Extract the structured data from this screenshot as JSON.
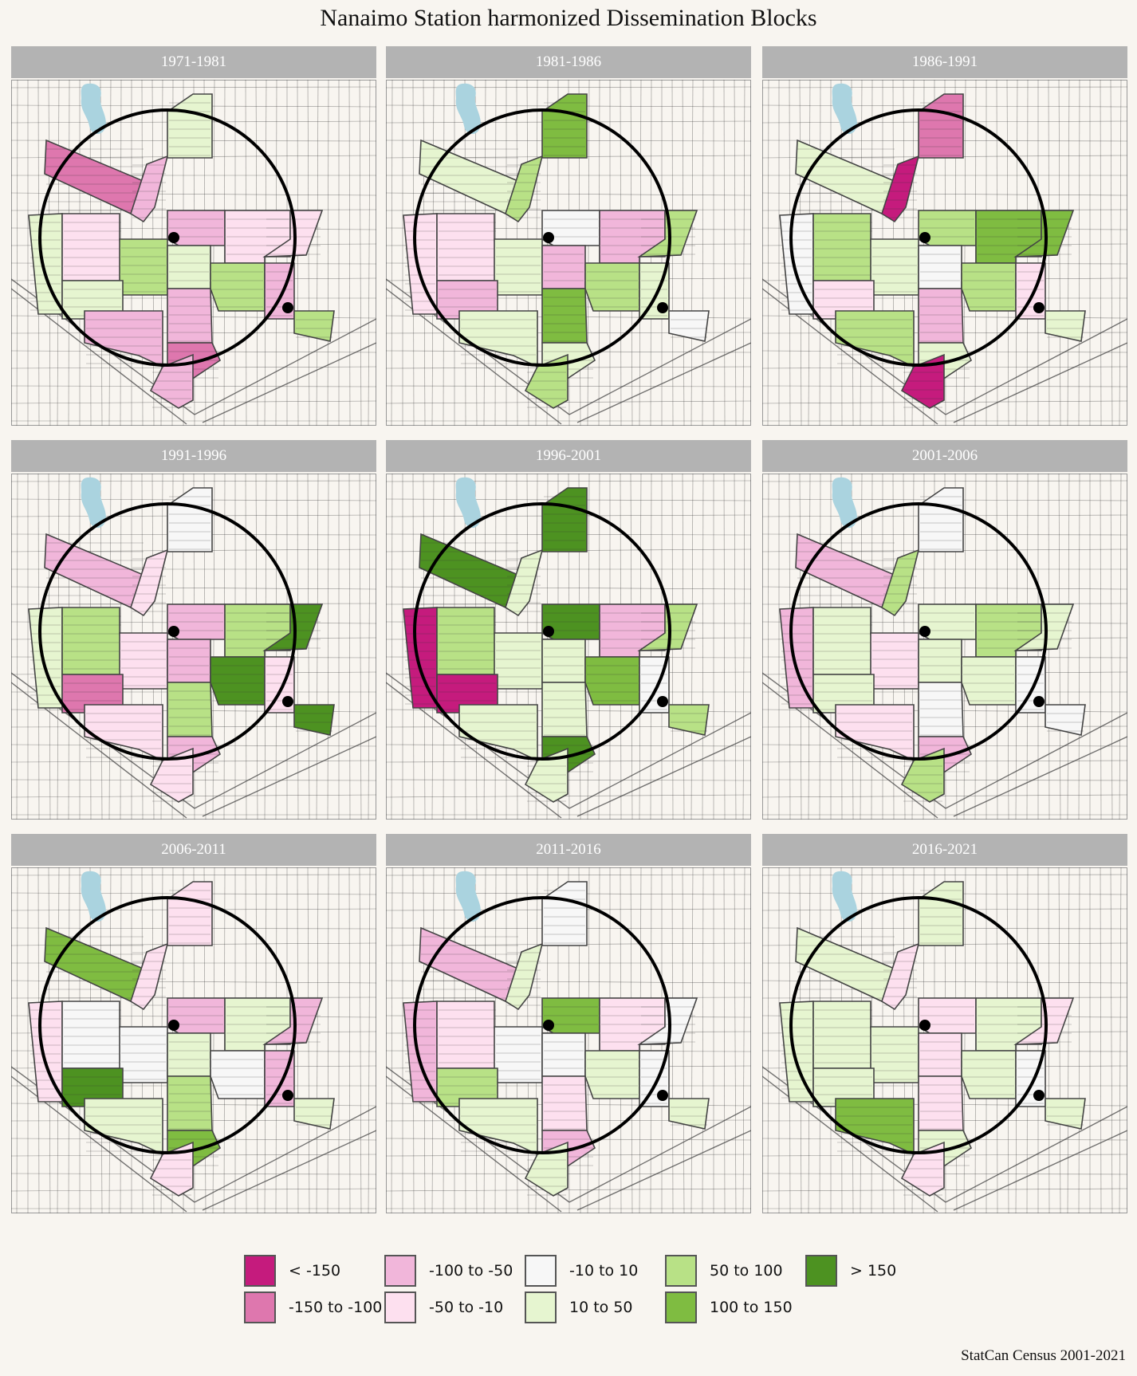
{
  "title": "Nanaimo Station harmonized Dissemination Blocks",
  "caption": "StatCan Census 2001-2021",
  "colors": {
    "background": "#f8f5f0",
    "strip": "#b3b3b3",
    "water": "#aad3df",
    "streets": "#3c3c3c",
    "circle": "#000000"
  },
  "legend": [
    {
      "label": "< -150",
      "color": "#c51b7d"
    },
    {
      "label": "-150 to -100",
      "color": "#de77ae"
    },
    {
      "label": "-100 to -50",
      "color": "#f1b6da"
    },
    {
      "label": "-50 to -10",
      "color": "#fde0ef"
    },
    {
      "label": "-10 to 10",
      "color": "#f7f7f7"
    },
    {
      "label": "10 to 50",
      "color": "#e6f5d0"
    },
    {
      "label": "50 to 100",
      "color": "#b8e186"
    },
    {
      "label": "100 to 150",
      "color": "#7fbc41"
    },
    {
      "label": "> 150",
      "color": "#4d9221"
    }
  ],
  "panels": [
    {
      "period": "1971-1981",
      "blocks": [
        "-150 to -100",
        "-100 to -50",
        "10 to 50",
        "10 to 50",
        "-50 to -10",
        "50 to 100",
        "-100 to -50",
        "-50 to -10",
        "-50 to -10",
        "10 to 50",
        "50 to 100",
        "-100 to -50",
        "50 to 100",
        "10 to 50",
        "-100 to -50",
        "-100 to -50"
      ]
    },
    {
      "period": "1981-1986",
      "blocks": [
        "10 to 50",
        "50 to 100",
        "100 to 150",
        "-50 to -10",
        "-50 to -10",
        "10 to 50",
        "-10 to 10",
        "-100 to -50",
        "50 to 100",
        "-100 to -50",
        "50 to 100",
        "10 to 50",
        "-10 to 10",
        "-100 to -50",
        "10 to 50",
        "100 to 150"
      ]
    },
    {
      "period": "1986-1991",
      "blocks": [
        "10 to 50",
        "< -150",
        "-150 to -100",
        "-10 to 10",
        "50 to 100",
        "10 to 50",
        "50 to 100",
        "100 to 150",
        "100 to 150",
        "-10 to 10",
        "50 to 100",
        "-50 to -10",
        "10 to 50",
        "-50 to -10",
        "50 to 100",
        "-100 to -50"
      ]
    },
    {
      "period": "1991-1996",
      "blocks": [
        "-100 to -50",
        "-50 to -10",
        "-10 to 10",
        "10 to 50",
        "50 to 100",
        "-50 to -10",
        "-100 to -50",
        "50 to 100",
        "> 150",
        "-100 to -50",
        "> 150",
        "-50 to -10",
        "> 150",
        "-150 to -100",
        "-50 to -10",
        "50 to 100"
      ]
    },
    {
      "period": "1996-2001",
      "blocks": [
        "> 150",
        "10 to 50",
        "> 150",
        "< -150",
        "50 to 100",
        "10 to 50",
        "> 150",
        "-100 to -50",
        "50 to 100",
        "10 to 50",
        "100 to 150",
        "-10 to 10",
        "50 to 100",
        "< -150",
        "10 to 50",
        "10 to 50"
      ]
    },
    {
      "period": "2001-2006",
      "blocks": [
        "-100 to -50",
        "50 to 100",
        "-10 to 10",
        "-100 to -50",
        "10 to 50",
        "-50 to -10",
        "10 to 50",
        "50 to 100",
        "10 to 50",
        "10 to 50",
        "10 to 50",
        "-10 to 10",
        "-10 to 10",
        "10 to 50",
        "-50 to -10",
        "-10 to 10"
      ]
    },
    {
      "period": "2006-2011",
      "blocks": [
        "100 to 150",
        "-50 to -10",
        "-50 to -10",
        "-50 to -10",
        "-10 to 10",
        "-10 to 10",
        "-100 to -50",
        "10 to 50",
        "-100 to -50",
        "10 to 50",
        "-10 to 10",
        "-100 to -50",
        "10 to 50",
        "> 150",
        "10 to 50",
        "50 to 100"
      ]
    },
    {
      "period": "2011-2016",
      "blocks": [
        "-100 to -50",
        "10 to 50",
        "-10 to 10",
        "-100 to -50",
        "-50 to -10",
        "-10 to 10",
        "100 to 150",
        "-50 to -10",
        "-10 to 10",
        "-10 to 10",
        "10 to 50",
        "-10 to 10",
        "10 to 50",
        "50 to 100",
        "10 to 50",
        "-50 to -10"
      ]
    },
    {
      "period": "2016-2021",
      "blocks": [
        "10 to 50",
        "-50 to -10",
        "10 to 50",
        "10 to 50",
        "10 to 50",
        "10 to 50",
        "-50 to -10",
        "10 to 50",
        "-50 to -10",
        "-50 to -10",
        "10 to 50",
        "-10 to 10",
        "10 to 50",
        "10 to 50",
        "100 to 150",
        "-50 to -10"
      ]
    }
  ]
}
